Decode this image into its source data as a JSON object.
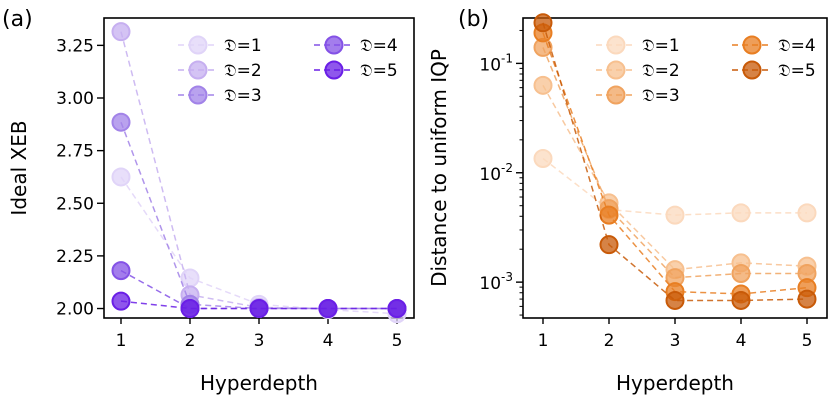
{
  "chart_data": [
    {
      "type": "line",
      "panel_label": "(a)",
      "xlabel": "Hyperdepth",
      "ylabel": "Ideal XEB",
      "yscale": "linear",
      "x": [
        1,
        2,
        3,
        4,
        5
      ],
      "xticks": [
        "1",
        "2",
        "3",
        "4",
        "5"
      ],
      "yticks": [
        2.0,
        2.25,
        2.5,
        2.75,
        3.0,
        3.25
      ],
      "ytick_labels": [
        "2.00",
        "2.25",
        "2.50",
        "2.75",
        "3.00",
        "3.25"
      ],
      "ylim": [
        1.955,
        3.38
      ],
      "legend_position": "top-right",
      "series": [
        {
          "name": "𝔇=1",
          "color": "#e0d4f8",
          "values": [
            2.625,
            2.145,
            2.02,
            1.995,
            1.975
          ]
        },
        {
          "name": "𝔇=2",
          "color": "#c6aff0",
          "values": [
            3.315,
            2.065,
            2.005,
            2.0,
            2.0
          ]
        },
        {
          "name": "𝔇=3",
          "color": "#a283e8",
          "values": [
            2.885,
            2.02,
            2.0,
            2.0,
            2.0
          ]
        },
        {
          "name": "𝔇=4",
          "color": "#8452e6",
          "values": [
            2.18,
            2.0,
            2.0,
            2.0,
            2.0
          ]
        },
        {
          "name": "𝔇=5",
          "color": "#6a1fe6",
          "values": [
            2.035,
            2.0,
            2.0,
            2.0,
            2.0
          ]
        }
      ]
    },
    {
      "type": "line",
      "panel_label": "(b)",
      "xlabel": "Hyperdepth",
      "ylabel": "Distance to uniform IQP",
      "yscale": "log",
      "x": [
        1,
        2,
        3,
        4,
        5
      ],
      "xticks": [
        "1",
        "2",
        "3",
        "4",
        "5"
      ],
      "yticks": [
        0.001,
        0.01,
        0.1
      ],
      "ytick_labels": [
        "10-3",
        "10-2",
        "10-1"
      ],
      "ylim": [
        0.00047,
        0.26
      ],
      "legend_position": "top-right",
      "series": [
        {
          "name": "𝔇=1",
          "color": "#fbd9bd",
          "values": [
            0.0135,
            0.0046,
            0.0041,
            0.0043,
            0.0043
          ]
        },
        {
          "name": "𝔇=2",
          "color": "#f7c08f",
          "values": [
            0.063,
            0.0053,
            0.0013,
            0.0015,
            0.0014
          ]
        },
        {
          "name": "𝔇=3",
          "color": "#f0a35f",
          "values": [
            0.14,
            0.0047,
            0.0011,
            0.0012,
            0.0012
          ]
        },
        {
          "name": "𝔇=4",
          "color": "#e87e22",
          "values": [
            0.19,
            0.0041,
            0.00082,
            0.00078,
            0.00089
          ]
        },
        {
          "name": "𝔇=5",
          "color": "#c85a08",
          "values": [
            0.235,
            0.0022,
            0.00068,
            0.00068,
            0.0007
          ]
        }
      ]
    }
  ]
}
